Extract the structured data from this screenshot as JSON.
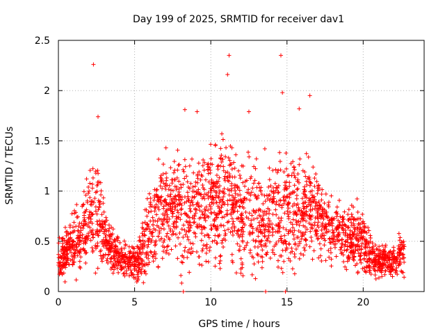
{
  "chart_data": {
    "type": "scatter",
    "title": "Day 199 of 2025, SRMTID for receiver dav1",
    "xlabel": "GPS time / hours",
    "ylabel": "SRMTID / TECUs",
    "xlim": [
      0,
      24
    ],
    "ylim": [
      0,
      2.5
    ],
    "x_ticks": [
      0,
      5,
      10,
      15,
      20
    ],
    "y_ticks": [
      0,
      0.5,
      1,
      1.5,
      2,
      2.5
    ],
    "x_tick_labels": [
      "0",
      "5",
      "10",
      "15",
      "20"
    ],
    "y_tick_labels": [
      "0",
      "0.5",
      "1",
      "1.5",
      "2",
      "2.5"
    ],
    "grid": true,
    "marker": "+",
    "color": "#ff0000",
    "envelope": {
      "hours": [
        0,
        0.5,
        1,
        1.5,
        2,
        2.5,
        3,
        3.5,
        4,
        4.5,
        5,
        5.5,
        6,
        6.5,
        7,
        7.5,
        8,
        8.5,
        9,
        9.5,
        10,
        10.5,
        11,
        11.5,
        12,
        12.5,
        13,
        13.5,
        14,
        14.5,
        15,
        15.5,
        16,
        16.5,
        17,
        17.5,
        18,
        18.5,
        19,
        19.5,
        20,
        20.5,
        21,
        21.5,
        22,
        22.5,
        22.7
      ],
      "typical": [
        0.3,
        0.4,
        0.45,
        0.55,
        0.75,
        0.8,
        0.55,
        0.4,
        0.35,
        0.3,
        0.28,
        0.4,
        0.6,
        0.75,
        0.8,
        0.85,
        0.8,
        0.75,
        0.8,
        0.85,
        0.9,
        0.85,
        0.9,
        0.8,
        0.75,
        0.8,
        0.7,
        0.7,
        0.8,
        0.75,
        0.8,
        0.8,
        0.8,
        0.85,
        0.75,
        0.65,
        0.6,
        0.6,
        0.55,
        0.55,
        0.5,
        0.35,
        0.3,
        0.3,
        0.3,
        0.4,
        0.35
      ],
      "spread": [
        0.2,
        0.25,
        0.3,
        0.35,
        0.45,
        0.55,
        0.3,
        0.2,
        0.15,
        0.15,
        0.18,
        0.3,
        0.45,
        0.5,
        0.5,
        0.5,
        0.55,
        0.55,
        0.55,
        0.55,
        0.55,
        0.6,
        0.6,
        0.55,
        0.55,
        0.55,
        0.55,
        0.55,
        0.6,
        0.55,
        0.55,
        0.55,
        0.55,
        0.5,
        0.45,
        0.35,
        0.3,
        0.3,
        0.3,
        0.3,
        0.3,
        0.2,
        0.15,
        0.15,
        0.15,
        0.2,
        0.2
      ]
    },
    "notable_points": [
      {
        "x": 2.3,
        "y": 2.26
      },
      {
        "x": 11.2,
        "y": 2.35
      },
      {
        "x": 14.6,
        "y": 2.35
      },
      {
        "x": 11.1,
        "y": 2.16
      },
      {
        "x": 16.5,
        "y": 1.95
      },
      {
        "x": 14.7,
        "y": 1.98
      },
      {
        "x": 2.6,
        "y": 1.74
      },
      {
        "x": 8.3,
        "y": 1.81
      },
      {
        "x": 9.1,
        "y": 1.79
      },
      {
        "x": 12.5,
        "y": 1.79
      },
      {
        "x": 15.8,
        "y": 1.82
      },
      {
        "x": 8.2,
        "y": 0.0
      },
      {
        "x": 13.6,
        "y": 0.0
      },
      {
        "x": 14.9,
        "y": 0.0
      }
    ],
    "point_count": 2600
  }
}
